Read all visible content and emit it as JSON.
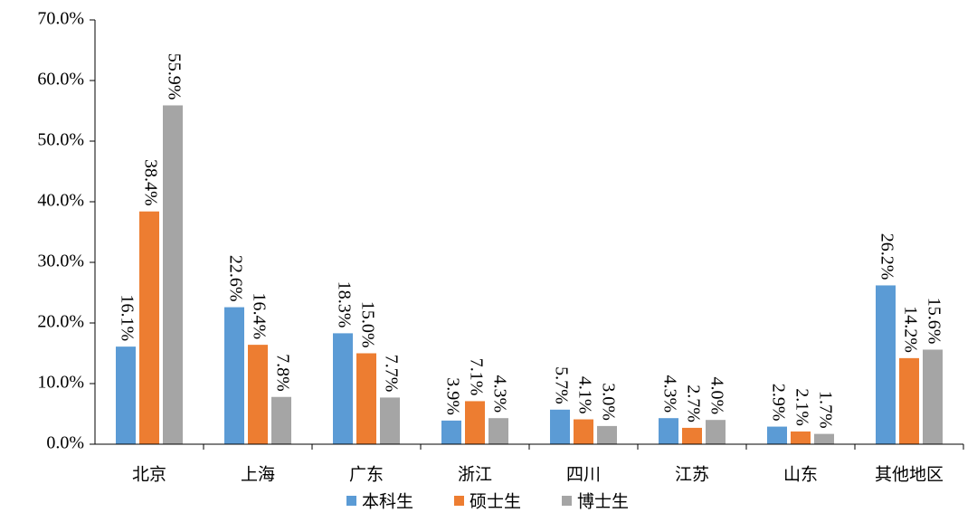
{
  "chart_data": {
    "type": "bar",
    "categories": [
      "北京",
      "上海",
      "广东",
      "浙江",
      "四川",
      "江苏",
      "山东",
      "其他地区"
    ],
    "series": [
      {
        "name": "本科生",
        "color": "#5b9bd5",
        "values": [
          16.1,
          22.6,
          18.3,
          3.9,
          5.7,
          4.3,
          2.9,
          26.2
        ],
        "value_labels": [
          "16.1%",
          "22.6%",
          "18.3%",
          "3.9%",
          "5.7%",
          "4.3%",
          "2.9%",
          "26.2%"
        ]
      },
      {
        "name": "硕士生",
        "color": "#ed7d31",
        "values": [
          38.4,
          16.4,
          15.0,
          7.1,
          4.1,
          2.7,
          2.1,
          14.2
        ],
        "value_labels": [
          "38.4%",
          "16.4%",
          "15.0%",
          "7.1%",
          "4.1%",
          "2.7%",
          "2.1%",
          "14.2%"
        ]
      },
      {
        "name": "博士生",
        "color": "#a5a5a5",
        "values": [
          55.9,
          7.8,
          7.7,
          4.3,
          3.0,
          4.0,
          1.7,
          15.6
        ],
        "value_labels": [
          "55.9%",
          "7.8%",
          "7.7%",
          "4.3%",
          "3.0%",
          "4.0%",
          "1.7%",
          "15.6%"
        ]
      }
    ],
    "ylim": [
      0,
      70
    ],
    "yticks": [
      {
        "value": 0,
        "label": "0.0%"
      },
      {
        "value": 10,
        "label": "10.0%"
      },
      {
        "value": 20,
        "label": "20.0%"
      },
      {
        "value": 30,
        "label": "30.0%"
      },
      {
        "value": 40,
        "label": "40.0%"
      },
      {
        "value": 50,
        "label": "50.0%"
      },
      {
        "value": 60,
        "label": "60.0%"
      },
      {
        "value": 70,
        "label": "70.0%"
      }
    ],
    "grid": false,
    "legend": "bottom"
  }
}
